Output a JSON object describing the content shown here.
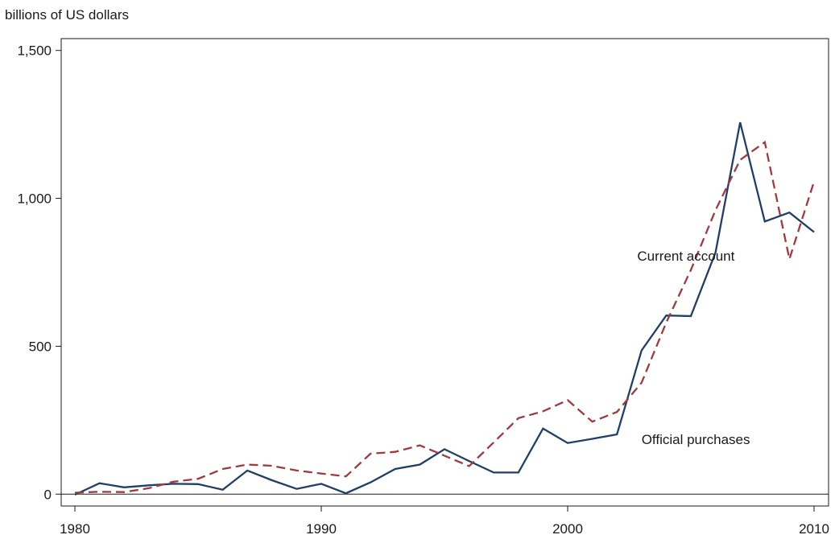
{
  "chart_data": {
    "type": "line",
    "title": "",
    "ylabel": "billions of US dollars",
    "xlabel": "",
    "xlim": [
      1980,
      2010
    ],
    "ylim": [
      -40,
      1540
    ],
    "x_ticks": [
      1980,
      1990,
      2000,
      2010
    ],
    "x_tick_labels": [
      "1980",
      "1990",
      "2000",
      "2010"
    ],
    "y_ticks": [
      0,
      500,
      1000,
      1500
    ],
    "y_tick_labels": [
      "0",
      "500",
      "1,000",
      "1,500"
    ],
    "zero_line": true,
    "grid": false,
    "x": [
      1980,
      1981,
      1982,
      1983,
      1984,
      1985,
      1986,
      1987,
      1988,
      1989,
      1990,
      1991,
      1992,
      1993,
      1994,
      1995,
      1996,
      1997,
      1998,
      1999,
      2000,
      2001,
      2002,
      2003,
      2004,
      2005,
      2006,
      2007,
      2008,
      2009,
      2010
    ],
    "series": [
      {
        "name": "Official purchases",
        "color": "#1f3f66",
        "style": "solid",
        "values": [
          -2,
          37,
          23,
          30,
          35,
          34,
          15,
          80,
          47,
          18,
          35,
          3,
          40,
          85,
          100,
          152,
          112,
          73,
          73,
          222,
          173,
          187,
          202,
          486,
          604,
          602,
          817,
          1257,
          922,
          952,
          886
        ]
      },
      {
        "name": "Current account",
        "color": "#a03a3e",
        "style": "dashed",
        "values": [
          5,
          8,
          7,
          20,
          42,
          52,
          85,
          100,
          96,
          80,
          70,
          60,
          137,
          143,
          165,
          130,
          95,
          175,
          257,
          280,
          318,
          245,
          278,
          377,
          580,
          758,
          960,
          1130,
          1190,
          795,
          1057
        ]
      }
    ],
    "annotations": [
      {
        "text": "Current account",
        "series": "Current account",
        "x": 2004.8,
        "y": 790
      },
      {
        "text": "Official purchases",
        "series": "Official purchases",
        "x": 2005.2,
        "y": 170
      }
    ]
  }
}
